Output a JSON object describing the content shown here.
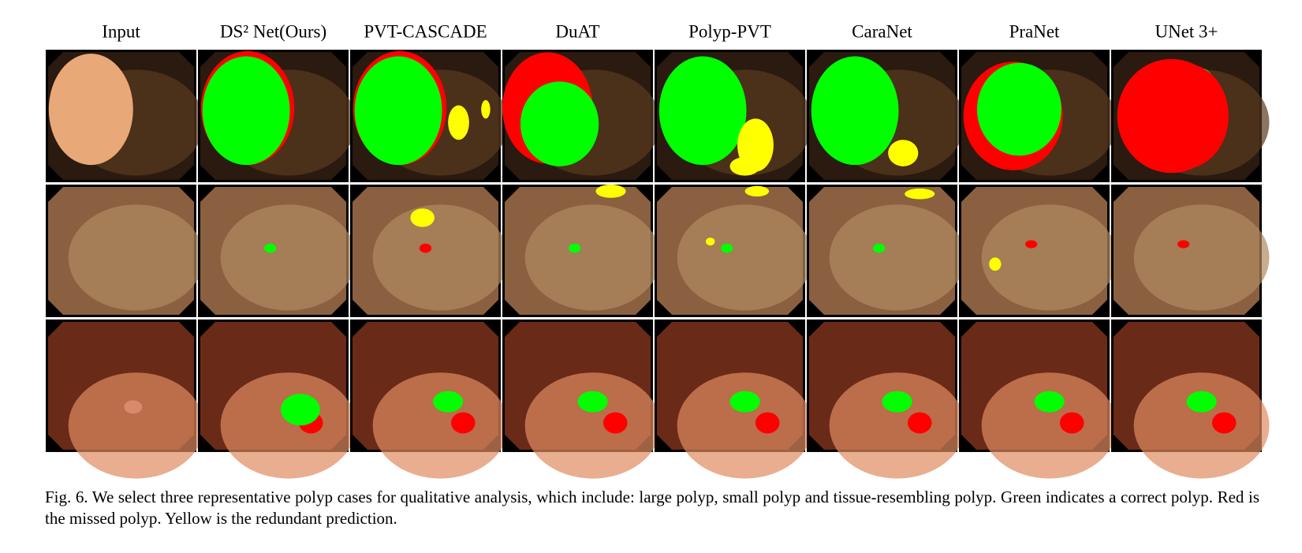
{
  "columns": [
    "Input",
    "DS² Net(Ours)",
    "PVT-CASCADE",
    "DuAT",
    "Polyp-PVT",
    "CaraNet",
    "PraNet",
    "UNet 3+"
  ],
  "caption": "Fig. 6.  We select three representative polyp cases for qualitative analysis, which include: large polyp, small polyp and tissue-resembling polyp. Green indicates a correct polyp. Red is the missed polyp. Yellow is the redundant prediction."
}
